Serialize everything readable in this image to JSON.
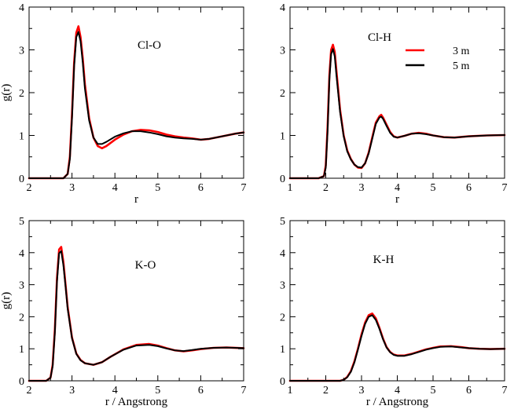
{
  "chart_data": [
    {
      "type": "line",
      "panel_label": "Cl-O",
      "xlabel": "r",
      "ylabel": "g(r)",
      "xlim": [
        2,
        7
      ],
      "ylim": [
        0,
        4
      ],
      "xticks": [
        2,
        3,
        4,
        5,
        6,
        7
      ],
      "yticks": [
        0,
        1,
        2,
        3,
        4
      ],
      "series": [
        {
          "name": "3 m",
          "color": "#ff0000",
          "x": [
            2.0,
            2.5,
            2.8,
            2.9,
            2.95,
            3.0,
            3.05,
            3.1,
            3.15,
            3.2,
            3.25,
            3.3,
            3.4,
            3.5,
            3.6,
            3.7,
            3.8,
            4.0,
            4.2,
            4.4,
            4.6,
            4.8,
            5.0,
            5.2,
            5.4,
            5.6,
            5.8,
            6.0,
            6.2,
            6.5,
            6.8,
            7.0
          ],
          "y": [
            0,
            0,
            0,
            0.1,
            0.5,
            1.5,
            2.7,
            3.4,
            3.55,
            3.3,
            2.8,
            2.2,
            1.4,
            0.95,
            0.75,
            0.7,
            0.75,
            0.9,
            1.02,
            1.1,
            1.13,
            1.12,
            1.08,
            1.02,
            0.98,
            0.95,
            0.93,
            0.9,
            0.92,
            0.98,
            1.04,
            1.07
          ]
        },
        {
          "name": "5 m",
          "color": "#000000",
          "x": [
            2.0,
            2.5,
            2.8,
            2.9,
            2.95,
            3.0,
            3.05,
            3.1,
            3.15,
            3.2,
            3.25,
            3.3,
            3.4,
            3.5,
            3.6,
            3.7,
            3.8,
            4.0,
            4.2,
            4.4,
            4.6,
            4.8,
            5.0,
            5.2,
            5.4,
            5.6,
            5.8,
            6.0,
            6.2,
            6.5,
            6.8,
            7.0
          ],
          "y": [
            0,
            0,
            0,
            0.1,
            0.45,
            1.4,
            2.6,
            3.3,
            3.42,
            3.2,
            2.7,
            2.1,
            1.35,
            0.95,
            0.8,
            0.8,
            0.85,
            0.97,
            1.05,
            1.1,
            1.1,
            1.07,
            1.03,
            0.98,
            0.95,
            0.93,
            0.92,
            0.9,
            0.92,
            0.98,
            1.04,
            1.07
          ]
        }
      ]
    },
    {
      "type": "line",
      "panel_label": "Cl-H",
      "xlabel": "r",
      "ylabel": "",
      "xlim": [
        1,
        7
      ],
      "ylim": [
        0,
        4
      ],
      "xticks": [
        1,
        2,
        3,
        4,
        5,
        6,
        7
      ],
      "yticks": [
        0,
        1,
        2,
        3,
        4
      ],
      "legend": [
        "3 m",
        "5 m"
      ],
      "series": [
        {
          "name": "3 m",
          "color": "#ff0000",
          "x": [
            1.0,
            1.8,
            1.95,
            2.0,
            2.05,
            2.1,
            2.15,
            2.2,
            2.25,
            2.3,
            2.4,
            2.5,
            2.6,
            2.7,
            2.8,
            2.9,
            3.0,
            3.1,
            3.2,
            3.3,
            3.4,
            3.5,
            3.55,
            3.6,
            3.7,
            3.8,
            3.9,
            4.0,
            4.2,
            4.4,
            4.6,
            4.8,
            5.0,
            5.3,
            5.6,
            6.0,
            6.5,
            7.0
          ],
          "y": [
            0,
            0,
            0.05,
            0.3,
            1.2,
            2.4,
            3.0,
            3.12,
            2.95,
            2.5,
            1.6,
            1.0,
            0.65,
            0.45,
            0.32,
            0.25,
            0.24,
            0.35,
            0.6,
            0.95,
            1.3,
            1.45,
            1.48,
            1.42,
            1.25,
            1.08,
            0.98,
            0.95,
            0.99,
            1.04,
            1.06,
            1.04,
            1.0,
            0.96,
            0.95,
            0.98,
            1.0,
            1.01
          ]
        },
        {
          "name": "5 m",
          "color": "#000000",
          "x": [
            1.0,
            1.8,
            1.95,
            2.0,
            2.05,
            2.1,
            2.15,
            2.2,
            2.25,
            2.3,
            2.4,
            2.5,
            2.6,
            2.7,
            2.8,
            2.9,
            3.0,
            3.1,
            3.2,
            3.3,
            3.4,
            3.5,
            3.55,
            3.6,
            3.7,
            3.8,
            3.9,
            4.0,
            4.2,
            4.4,
            4.6,
            4.8,
            5.0,
            5.3,
            5.6,
            6.0,
            6.5,
            7.0
          ],
          "y": [
            0,
            0,
            0.05,
            0.25,
            1.1,
            2.3,
            2.9,
            3.02,
            2.85,
            2.4,
            1.55,
            0.98,
            0.63,
            0.44,
            0.32,
            0.26,
            0.25,
            0.35,
            0.58,
            0.92,
            1.27,
            1.42,
            1.44,
            1.39,
            1.22,
            1.06,
            0.97,
            0.95,
            0.99,
            1.04,
            1.05,
            1.03,
            1.0,
            0.96,
            0.95,
            0.98,
            1.0,
            1.01
          ]
        }
      ]
    },
    {
      "type": "line",
      "panel_label": "K-O",
      "xlabel": "r  / Angstrong",
      "ylabel": "g(r)",
      "xlim": [
        2,
        7
      ],
      "ylim": [
        0,
        5
      ],
      "xticks": [
        2,
        3,
        4,
        5,
        6,
        7
      ],
      "yticks": [
        0,
        1,
        2,
        3,
        4,
        5
      ],
      "series": [
        {
          "name": "3 m",
          "color": "#ff0000",
          "x": [
            2.0,
            2.4,
            2.5,
            2.55,
            2.6,
            2.65,
            2.7,
            2.75,
            2.8,
            2.85,
            2.9,
            3.0,
            3.1,
            3.2,
            3.3,
            3.5,
            3.7,
            3.9,
            4.2,
            4.5,
            4.8,
            5.0,
            5.2,
            5.4,
            5.6,
            5.8,
            6.0,
            6.3,
            6.6,
            7.0
          ],
          "y": [
            0,
            0,
            0.1,
            0.5,
            1.6,
            3.2,
            4.1,
            4.18,
            3.7,
            3.0,
            2.3,
            1.35,
            0.85,
            0.65,
            0.55,
            0.5,
            0.58,
            0.75,
            0.98,
            1.12,
            1.15,
            1.1,
            1.02,
            0.95,
            0.92,
            0.95,
            0.99,
            1.03,
            1.04,
            1.02
          ]
        },
        {
          "name": "5 m",
          "color": "#000000",
          "x": [
            2.0,
            2.4,
            2.5,
            2.55,
            2.6,
            2.65,
            2.7,
            2.75,
            2.8,
            2.85,
            2.9,
            3.0,
            3.1,
            3.2,
            3.3,
            3.5,
            3.7,
            3.9,
            4.2,
            4.5,
            4.8,
            5.0,
            5.2,
            5.4,
            5.6,
            5.8,
            6.0,
            6.3,
            6.6,
            7.0
          ],
          "y": [
            0,
            0,
            0.1,
            0.45,
            1.5,
            3.1,
            3.98,
            4.05,
            3.6,
            2.95,
            2.25,
            1.33,
            0.84,
            0.64,
            0.55,
            0.5,
            0.58,
            0.75,
            0.97,
            1.1,
            1.12,
            1.08,
            1.01,
            0.95,
            0.93,
            0.96,
            1.0,
            1.03,
            1.04,
            1.02
          ]
        }
      ]
    },
    {
      "type": "line",
      "panel_label": "K-H",
      "xlabel": "r  /  Angstrong",
      "ylabel": "",
      "xlim": [
        1,
        7
      ],
      "ylim": [
        0,
        5
      ],
      "xticks": [
        1,
        2,
        3,
        4,
        5,
        6,
        7
      ],
      "yticks": [
        0,
        1,
        2,
        3,
        4,
        5
      ],
      "series": [
        {
          "name": "3 m",
          "color": "#ff0000",
          "x": [
            1.0,
            2.4,
            2.5,
            2.6,
            2.7,
            2.8,
            2.9,
            3.0,
            3.1,
            3.2,
            3.3,
            3.4,
            3.5,
            3.6,
            3.7,
            3.8,
            3.9,
            4.0,
            4.2,
            4.4,
            4.6,
            4.8,
            5.0,
            5.2,
            5.5,
            5.8,
            6.0,
            6.3,
            6.6,
            7.0
          ],
          "y": [
            0,
            0,
            0.03,
            0.12,
            0.3,
            0.6,
            1.0,
            1.45,
            1.82,
            2.05,
            2.1,
            1.95,
            1.65,
            1.32,
            1.05,
            0.9,
            0.82,
            0.79,
            0.79,
            0.84,
            0.91,
            0.98,
            1.03,
            1.07,
            1.08,
            1.05,
            1.02,
            1.0,
            0.99,
            1.0
          ]
        },
        {
          "name": "5 m",
          "color": "#000000",
          "x": [
            1.0,
            2.4,
            2.5,
            2.6,
            2.7,
            2.8,
            2.9,
            3.0,
            3.1,
            3.2,
            3.3,
            3.4,
            3.5,
            3.6,
            3.7,
            3.8,
            3.9,
            4.0,
            4.2,
            4.4,
            4.6,
            4.8,
            5.0,
            5.2,
            5.5,
            5.8,
            6.0,
            6.3,
            6.6,
            7.0
          ],
          "y": [
            0,
            0,
            0.03,
            0.11,
            0.28,
            0.57,
            0.97,
            1.4,
            1.78,
            2.0,
            2.05,
            1.9,
            1.62,
            1.3,
            1.04,
            0.89,
            0.81,
            0.78,
            0.78,
            0.83,
            0.9,
            0.97,
            1.02,
            1.06,
            1.07,
            1.04,
            1.02,
            1.0,
            0.99,
            1.0
          ]
        }
      ]
    }
  ]
}
